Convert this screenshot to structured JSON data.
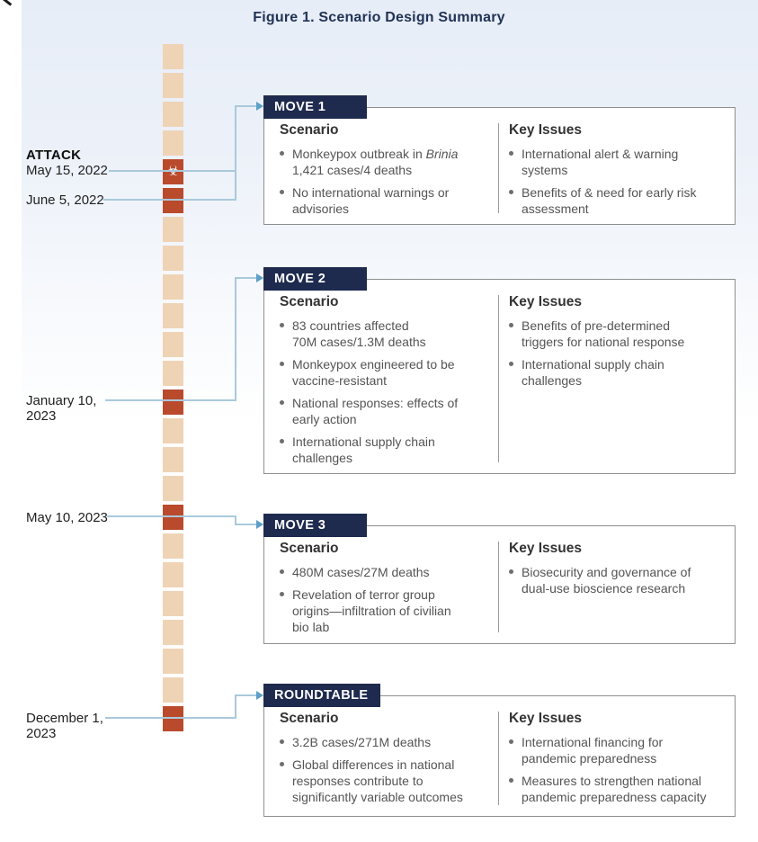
{
  "title": "Figure 1. Scenario Design Summary",
  "colors": {
    "navy": "#1e2a4e",
    "timeline_tan": "#eed3b5",
    "timeline_red": "#b94a2c",
    "connector_blue": "#a9c9dc",
    "arrow_blue": "#5d9fc7",
    "title_navy": "#223357"
  },
  "timeline": {
    "attack_label": "ATTACK",
    "biohazard_icon": "☣",
    "cells": [
      "tan",
      "tan",
      "tan",
      "tan",
      "biohazard",
      "red",
      "tan",
      "tan",
      "tan",
      "tan",
      "tan",
      "tan",
      "red",
      "tan",
      "tan",
      "tan",
      "red",
      "tan",
      "tan",
      "tan",
      "tan",
      "tan",
      "tan",
      "red"
    ],
    "dates": [
      {
        "label": "May 15, 2022"
      },
      {
        "label": "June 5, 2022"
      },
      {
        "line1": "January 10,",
        "line2": "2023"
      },
      {
        "label": "May 10, 2023"
      },
      {
        "line1": "December 1,",
        "line2": "2023"
      }
    ]
  },
  "boxes": [
    {
      "header": "MOVE 1",
      "scenario_label": "Scenario",
      "key_label": "Key Issues",
      "scenario": [
        {
          "line1_pre": "Monkeypox outbreak in ",
          "line1_italic": "Brinia",
          "lines": [
            "1,421 cases/4 deaths"
          ]
        },
        {
          "lines": [
            "No international warnings or",
            "advisories"
          ]
        }
      ],
      "key": [
        {
          "lines": [
            "International alert & warning",
            "systems"
          ]
        },
        {
          "lines": [
            "Benefits of & need for early risk",
            "assessment"
          ]
        }
      ]
    },
    {
      "header": "MOVE 2",
      "scenario_label": "Scenario",
      "key_label": "Key Issues",
      "scenario": [
        {
          "lines": [
            "83 countries affected",
            "70M cases/1.3M deaths"
          ]
        },
        {
          "lines": [
            "Monkeypox engineered to be",
            "vaccine-resistant"
          ]
        },
        {
          "lines": [
            "National responses: effects of",
            "early action"
          ]
        },
        {
          "lines": [
            "International supply chain",
            "challenges"
          ]
        }
      ],
      "key": [
        {
          "lines": [
            "Benefits of pre-determined",
            "triggers for national response"
          ]
        },
        {
          "lines": [
            "International supply chain",
            "challenges"
          ]
        }
      ]
    },
    {
      "header": "MOVE 3",
      "scenario_label": "Scenario",
      "key_label": "Key Issues",
      "scenario": [
        {
          "lines": [
            "480M cases/27M deaths"
          ]
        },
        {
          "lines": [
            "Revelation of terror group",
            "origins—infiltration of civilian",
            "bio lab"
          ]
        }
      ],
      "key": [
        {
          "lines": [
            "Biosecurity and governance of",
            "dual-use bioscience research"
          ]
        }
      ]
    },
    {
      "header": "ROUNDTABLE",
      "scenario_label": "Scenario",
      "key_label": "Key Issues",
      "scenario": [
        {
          "lines": [
            "3.2B cases/271M deaths"
          ]
        },
        {
          "lines": [
            "Global differences in national",
            "responses contribute to",
            "significantly variable outcomes"
          ]
        }
      ],
      "key": [
        {
          "lines": [
            "International financing for",
            "pandemic preparedness"
          ]
        },
        {
          "lines": [
            "Measures to strengthen national",
            "pandemic preparedness capacity"
          ]
        }
      ]
    }
  ]
}
